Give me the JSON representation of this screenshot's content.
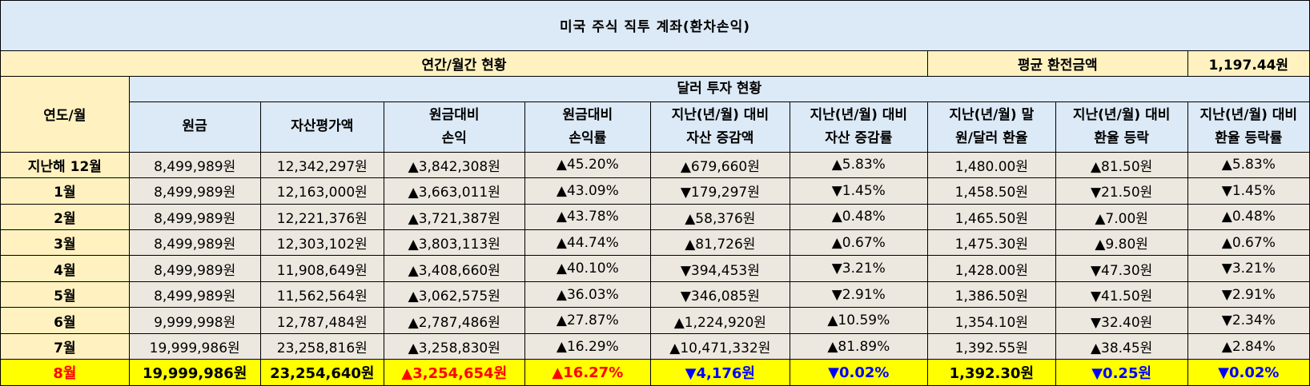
{
  "title": "미국 주식 직투 계좌(환차손익)",
  "summary": {
    "label": "연간/월간 현황",
    "avg_rate_label": "평균 환전금액",
    "avg_rate_value": "1,197.44원"
  },
  "header": {
    "row_label": "연도/월",
    "group_label": "달러 투자 현황",
    "columns": [
      [
        "원금"
      ],
      [
        "자산평가액"
      ],
      [
        "원금대비",
        "손익"
      ],
      [
        "원금대비",
        "손익률"
      ],
      [
        "지난(년/월) 대비",
        "자산 증감액"
      ],
      [
        "지난(년/월) 대비",
        "자산 증감률"
      ],
      [
        "지난(년/월) 말",
        "원/달러 환율"
      ],
      [
        "지난(년/월) 대비",
        "환율 등락"
      ],
      [
        "지난(년/월) 대비",
        "환율 등락률"
      ]
    ]
  },
  "rows": [
    {
      "label": "지난해 12월",
      "cells": [
        "8,499,989원",
        "12,342,297원",
        "▲3,842,308원",
        "▲45.20%",
        "▲679,660원",
        "▲5.83%",
        "1,480.00원",
        "▲81.50원",
        "▲5.83%"
      ],
      "dir": [
        "",
        "",
        "up",
        "up",
        "up",
        "up",
        "",
        "up",
        "up"
      ]
    },
    {
      "label": "1월",
      "cells": [
        "8,499,989원",
        "12,163,000원",
        "▲3,663,011원",
        "▲43.09%",
        "▼179,297원",
        "▼1.45%",
        "1,458.50원",
        "▼21.50원",
        "▼1.45%"
      ],
      "dir": [
        "",
        "",
        "up",
        "up",
        "down",
        "down",
        "",
        "down",
        "down"
      ]
    },
    {
      "label": "2월",
      "cells": [
        "8,499,989원",
        "12,221,376원",
        "▲3,721,387원",
        "▲43.78%",
        "▲58,376원",
        "▲0.48%",
        "1,465.50원",
        "▲7.00원",
        "▲0.48%"
      ],
      "dir": [
        "",
        "",
        "up",
        "up",
        "up",
        "up",
        "",
        "up",
        "up"
      ]
    },
    {
      "label": "3월",
      "cells": [
        "8,499,989원",
        "12,303,102원",
        "▲3,803,113원",
        "▲44.74%",
        "▲81,726원",
        "▲0.67%",
        "1,475.30원",
        "▲9.80원",
        "▲0.67%"
      ],
      "dir": [
        "",
        "",
        "up",
        "up",
        "up",
        "up",
        "",
        "up",
        "up"
      ]
    },
    {
      "label": "4월",
      "cells": [
        "8,499,989원",
        "11,908,649원",
        "▲3,408,660원",
        "▲40.10%",
        "▼394,453원",
        "▼3.21%",
        "1,428.00원",
        "▼47.30원",
        "▼3.21%"
      ],
      "dir": [
        "",
        "",
        "up",
        "up",
        "down",
        "down",
        "",
        "down",
        "down"
      ]
    },
    {
      "label": "5월",
      "cells": [
        "8,499,989원",
        "11,562,564원",
        "▲3,062,575원",
        "▲36.03%",
        "▼346,085원",
        "▼2.91%",
        "1,386.50원",
        "▼41.50원",
        "▼2.91%"
      ],
      "dir": [
        "",
        "",
        "up",
        "up",
        "down",
        "down",
        "",
        "down",
        "down"
      ]
    },
    {
      "label": "6월",
      "cells": [
        "9,999,998원",
        "12,787,484원",
        "▲2,787,486원",
        "▲27.87%",
        "▲1,224,920원",
        "▲10.59%",
        "1,354.10원",
        "▼32.40원",
        "▼2.34%"
      ],
      "dir": [
        "",
        "",
        "up",
        "up",
        "up",
        "up",
        "",
        "down",
        "down"
      ]
    },
    {
      "label": "7월",
      "cells": [
        "19,999,986원",
        "23,258,816원",
        "▲3,258,830원",
        "▲16.29%",
        "▲10,471,332원",
        "▲81.89%",
        "1,392.55원",
        "▲38.45원",
        "▲2.84%"
      ],
      "dir": [
        "",
        "",
        "up",
        "up",
        "up",
        "up",
        "",
        "up",
        "up"
      ]
    },
    {
      "label": "8월",
      "cells": [
        "19,999,986원",
        "23,254,640원",
        "▲3,254,654원",
        "▲16.27%",
        "▼4,176원",
        "▼0.02%",
        "1,392.30원",
        "▼0.25원",
        "▼0.02%"
      ],
      "dir": [
        "",
        "",
        "up",
        "up",
        "down",
        "down",
        "",
        "down",
        "down"
      ]
    }
  ],
  "colors": {
    "title_bg": "#dce9f6",
    "summary_bg": "#fff2c0",
    "cell_bg": "#ede8df",
    "highlight_bg": "#ffff00",
    "up": "#ff0000",
    "down": "#0000ff"
  }
}
